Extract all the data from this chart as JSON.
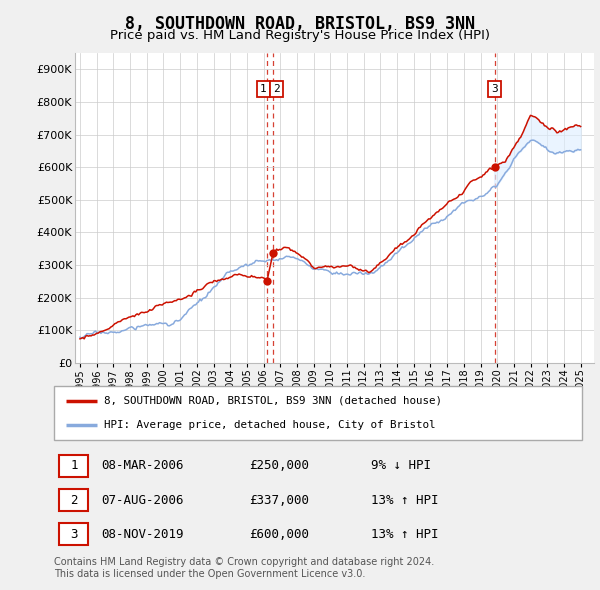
{
  "title": "8, SOUTHDOWN ROAD, BRISTOL, BS9 3NN",
  "subtitle": "Price paid vs. HM Land Registry's House Price Index (HPI)",
  "title_fontsize": 12,
  "subtitle_fontsize": 9.5,
  "ylim": [
    0,
    950000
  ],
  "yticks": [
    0,
    100000,
    200000,
    300000,
    400000,
    500000,
    600000,
    700000,
    800000,
    900000
  ],
  "ytick_labels": [
    "£0",
    "£100K",
    "£200K",
    "£300K",
    "£400K",
    "£500K",
    "£600K",
    "£700K",
    "£800K",
    "£900K"
  ],
  "xlim_start": 1994.7,
  "xlim_end": 2025.8,
  "xticks": [
    1995,
    1996,
    1997,
    1998,
    1999,
    2000,
    2001,
    2002,
    2003,
    2004,
    2005,
    2006,
    2007,
    2008,
    2009,
    2010,
    2011,
    2012,
    2013,
    2014,
    2015,
    2016,
    2017,
    2018,
    2019,
    2020,
    2021,
    2022,
    2023,
    2024,
    2025
  ],
  "line_color_hpi": "#88aadd",
  "line_color_property": "#cc1100",
  "fill_color": "#ddeeff",
  "fill_alpha": 0.6,
  "sale1_x": 2006.18,
  "sale1_y": 250000,
  "sale2_x": 2006.58,
  "sale2_y": 337000,
  "sale3_x": 2019.85,
  "sale3_y": 600000,
  "dashed_line_color": "#cc1100",
  "legend_label_property": "8, SOUTHDOWN ROAD, BRISTOL, BS9 3NN (detached house)",
  "legend_label_hpi": "HPI: Average price, detached house, City of Bristol",
  "footnote": "Contains HM Land Registry data © Crown copyright and database right 2024.\nThis data is licensed under the Open Government Licence v3.0.",
  "transactions": [
    {
      "num": 1,
      "date": "08-MAR-2006",
      "price": "£250,000",
      "hpi": "9% ↓ HPI"
    },
    {
      "num": 2,
      "date": "07-AUG-2006",
      "price": "£337,000",
      "hpi": "13% ↑ HPI"
    },
    {
      "num": 3,
      "date": "08-NOV-2019",
      "price": "£600,000",
      "hpi": "13% ↑ HPI"
    }
  ],
  "fig_bg_color": "#f0f0f0",
  "plot_bg_color": "#ffffff",
  "grid_color": "#cccccc"
}
